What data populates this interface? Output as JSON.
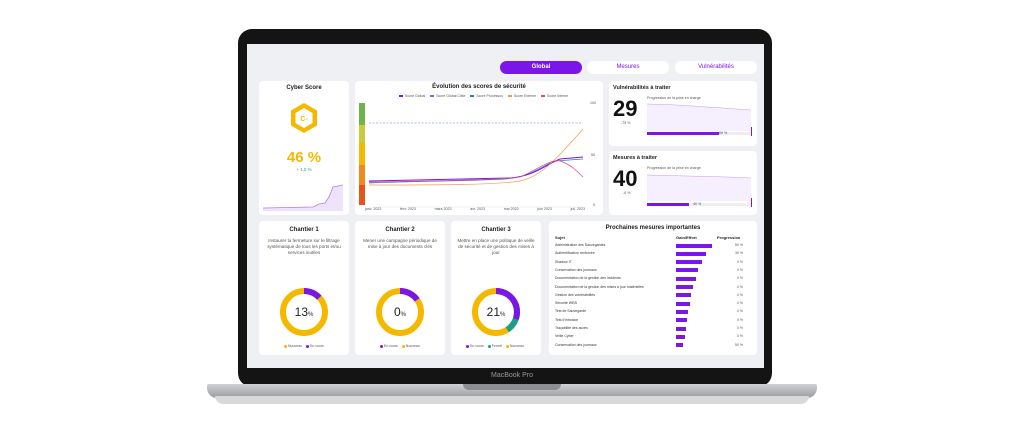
{
  "device": {
    "label": "MacBook Pro"
  },
  "tabs": [
    {
      "label": "Global",
      "active": true
    },
    {
      "label": "Mesures",
      "active": false
    },
    {
      "label": "Vulnérabilités",
      "active": false
    }
  ],
  "cyber_score": {
    "title": "Cyber Score",
    "grade": "C-",
    "value": "46 %",
    "delta": "+ 1,0 %",
    "colors": {
      "grade": "#f5b800",
      "value": "#f5b800",
      "delta": "#2a9d8f",
      "accent": "#7b16e8"
    }
  },
  "evolution": {
    "title": "Évolution des scores de sécurité",
    "legend": [
      "Score Global",
      "Score Global Cible",
      "Score Processus",
      "Score Externe",
      "Score Interne"
    ],
    "legend_colors": [
      "#7b16e8",
      "#5a7ad6",
      "#3a76c7",
      "#f29a4b",
      "#d64a7a"
    ],
    "x_labels": [
      "janv. 2023",
      "févr. 2023",
      "mars 2023",
      "avr. 2023",
      "mai 2023",
      "juin 2023",
      "juil. 2023"
    ],
    "y_labels": [
      "100",
      "50",
      "0"
    ]
  },
  "vuln": {
    "title": "Vulnérabilités à traiter",
    "value": "29",
    "delta": "-75 %",
    "progress_label": "Progression de la prise en charge",
    "progress_value": "69 %",
    "progress": 0.69
  },
  "mesures": {
    "title": "Mesures à traiter",
    "value": "40",
    "delta": "-6 %",
    "progress_label": "Progression de la prise en charge",
    "progress_value": "40 %",
    "progress": 0.4
  },
  "chantiers": [
    {
      "title": "Chantier 1",
      "text": "Instaurer la fermeture sur le filtrage systématique de tous les ports et/ou services inutiles",
      "value": "13",
      "unit": "%",
      "legend": [
        "Nouveau",
        "En cours"
      ],
      "legend_colors": [
        "#f5b800",
        "#7b16e8"
      ]
    },
    {
      "title": "Chantier 2",
      "text": "Mener une campagne périodique de mise à jour des documents clés",
      "value": "0",
      "unit": "%",
      "legend": [
        "En cours",
        "Nouveau"
      ],
      "legend_colors": [
        "#7b16e8",
        "#f5b800"
      ]
    },
    {
      "title": "Chantier 3",
      "text": "Mettre en place une politique de veille de sécurité et de gestion des mises à jour",
      "value": "21",
      "unit": "%",
      "legend": [
        "En cours",
        "Fermé",
        "Nouveau"
      ],
      "legend_colors": [
        "#7b16e8",
        "#1e9e8a",
        "#f5b800"
      ]
    }
  ],
  "prochaines": {
    "title": "Prochaines mesures importantes",
    "headers": [
      "Sujet",
      "Gain/Effort",
      "Progression"
    ],
    "rows": [
      {
        "sujet": "Administration des Sauvegardes",
        "gain": "",
        "bar": 1.0,
        "prog": "50 %"
      },
      {
        "sujet": "Authentification renforcée",
        "gain": "",
        "bar": 0.82,
        "prog": "30 %"
      },
      {
        "sujet": "Shadow IT",
        "gain": "",
        "bar": 0.72,
        "prog": "0 %"
      },
      {
        "sujet": "Conservation des journaux",
        "gain": "",
        "bar": 0.62,
        "prog": "0 %"
      },
      {
        "sujet": "Documentation de la gestion des incidents",
        "gain": "",
        "bar": 0.55,
        "prog": "0 %"
      },
      {
        "sujet": "Documentation de la gestion des mises à jour matérielles",
        "gain": "",
        "bar": 0.48,
        "prog": "0 %"
      },
      {
        "sujet": "Gestion des vulnérabilités",
        "gain": "",
        "bar": 0.42,
        "prog": "0 %"
      },
      {
        "sujet": "Sécurité WEB",
        "gain": "",
        "bar": 0.38,
        "prog": "0 %"
      },
      {
        "sujet": "Test de Sauvegarde",
        "gain": "",
        "bar": 0.34,
        "prog": "0 %"
      },
      {
        "sujet": "Test d'intrusion",
        "gain": "",
        "bar": 0.3,
        "prog": "0 %"
      },
      {
        "sujet": "Traçabilité des accès",
        "gain": "",
        "bar": 0.27,
        "prog": "0 %"
      },
      {
        "sujet": "Veille Cyber",
        "gain": "",
        "bar": 0.24,
        "prog": "0 %"
      },
      {
        "sujet": "Conservation des journaux",
        "gain": "",
        "bar": 0.2,
        "prog": "50 %"
      }
    ]
  }
}
